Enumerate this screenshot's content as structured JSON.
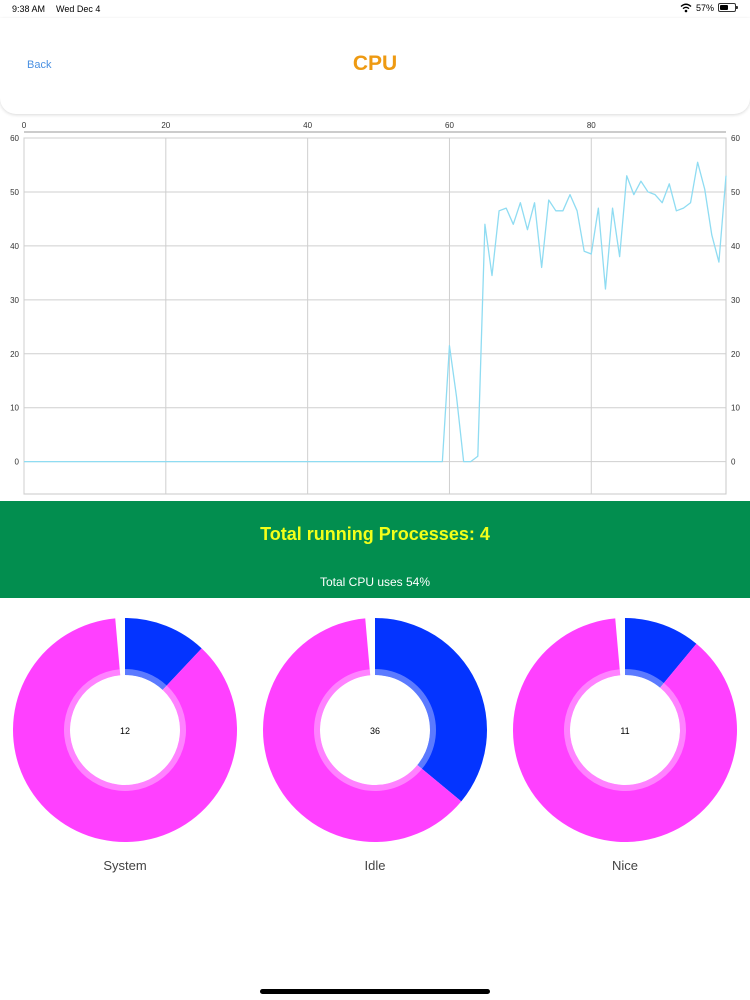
{
  "status_bar": {
    "time": "9:38 AM",
    "date": "Wed Dec 4",
    "battery": "57%",
    "battery_level": 0.57
  },
  "nav": {
    "back_label": "Back",
    "title": "CPU"
  },
  "chart_data": {
    "type": "line",
    "x_ticks": [
      "0",
      "20",
      "40",
      "60",
      "80"
    ],
    "y_ticks": [
      "0",
      "10",
      "20",
      "30",
      "40",
      "50",
      "60"
    ],
    "xlim": [
      0,
      99
    ],
    "ylim": [
      -6,
      60
    ],
    "grid": true,
    "series": [
      {
        "color": "#8fdcf2",
        "values": [
          0,
          0,
          0,
          0,
          0,
          0,
          0,
          0,
          0,
          0,
          0,
          0,
          0,
          0,
          0,
          0,
          0,
          0,
          0,
          0,
          0,
          0,
          0,
          0,
          0,
          0,
          0,
          0,
          0,
          0,
          0,
          0,
          0,
          0,
          0,
          0,
          0,
          0,
          0,
          0,
          0,
          0,
          0,
          0,
          0,
          0,
          0,
          0,
          0,
          0,
          0,
          0,
          0,
          0,
          0,
          0,
          0,
          0,
          0,
          0,
          21.5,
          12,
          0,
          0,
          1,
          44,
          34.5,
          46.5,
          47,
          44,
          48,
          43,
          48,
          36,
          48.5,
          46.5,
          46.5,
          49.5,
          46.5,
          39,
          38.5,
          47,
          32,
          47,
          38,
          53,
          49.5,
          52,
          50,
          49.5,
          48,
          51.5,
          46.5,
          47,
          48,
          55.5,
          50.5,
          42,
          37,
          53
        ]
      }
    ]
  },
  "banner": {
    "title": "Total running Processes: 4",
    "subtitle": "Total CPU uses 54%"
  },
  "donuts": [
    {
      "label": "System",
      "value": "12",
      "percent": 12,
      "active_color": "#0434ff",
      "rest_color": "#ff40ff"
    },
    {
      "label": "Idle",
      "value": "36",
      "percent": 36,
      "active_color": "#0434ff",
      "rest_color": "#ff40ff"
    },
    {
      "label": "Nice",
      "value": "11",
      "percent": 11,
      "active_color": "#0434ff",
      "rest_color": "#ff40ff"
    }
  ]
}
